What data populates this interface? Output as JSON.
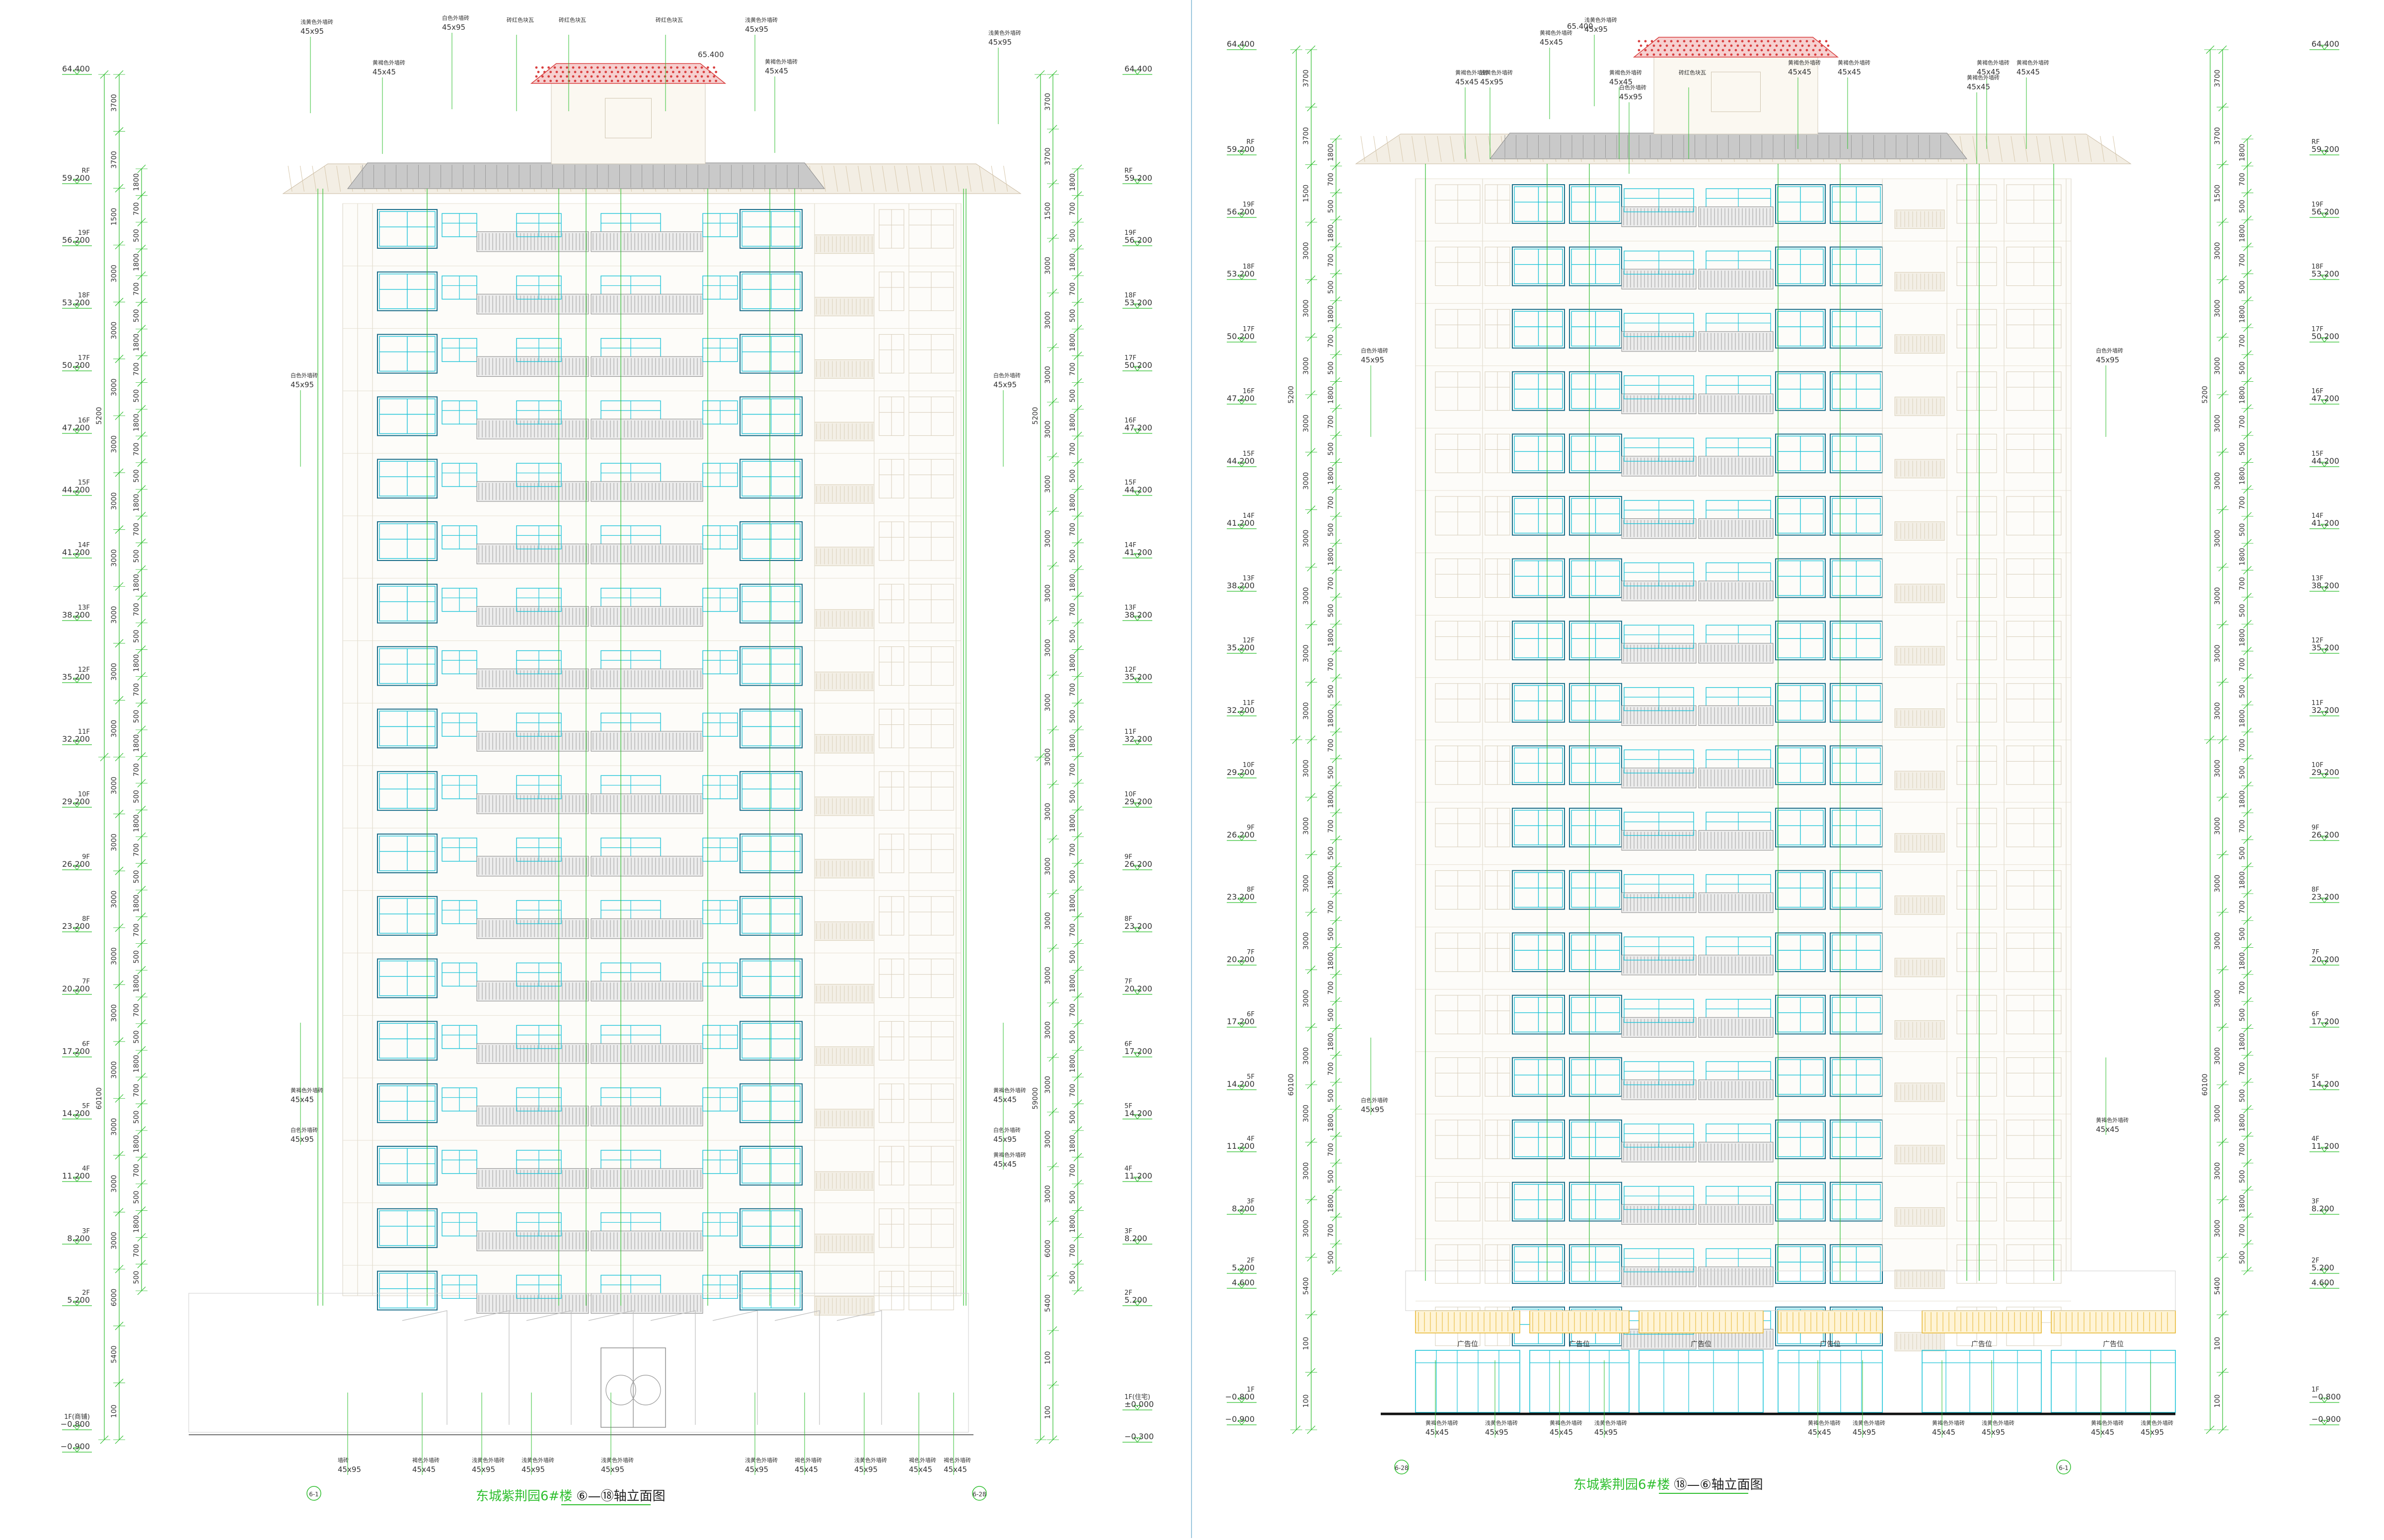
{
  "sheets": [
    {
      "id": "left",
      "title": "东城紫荆园6#楼",
      "axis_title": "⑥—⑱轴立面图",
      "axis_markers": [
        "6-1",
        "6-28"
      ],
      "levels": [
        {
          "floor": "",
          "elev": "64.400"
        },
        {
          "floor": "RF",
          "elev": "59.200"
        },
        {
          "floor": "19F",
          "elev": "56.200"
        },
        {
          "floor": "18F",
          "elev": "53.200"
        },
        {
          "floor": "17F",
          "elev": "50.200"
        },
        {
          "floor": "16F",
          "elev": "47.200"
        },
        {
          "floor": "15F",
          "elev": "44.200"
        },
        {
          "floor": "14F",
          "elev": "41.200"
        },
        {
          "floor": "13F",
          "elev": "38.200"
        },
        {
          "floor": "12F",
          "elev": "35.200"
        },
        {
          "floor": "11F",
          "elev": "32.200"
        },
        {
          "floor": "10F",
          "elev": "29.200"
        },
        {
          "floor": "9F",
          "elev": "26.200"
        },
        {
          "floor": "8F",
          "elev": "23.200"
        },
        {
          "floor": "7F",
          "elev": "20.200"
        },
        {
          "floor": "6F",
          "elev": "17.200"
        },
        {
          "floor": "5F",
          "elev": "14.200"
        },
        {
          "floor": "4F",
          "elev": "11.200"
        },
        {
          "floor": "3F",
          "elev": "8.200"
        },
        {
          "floor": "2F",
          "elev": "5.200"
        },
        {
          "floor": "1F(商铺)",
          "elev": "−0.800"
        },
        {
          "floor": "",
          "elev": "−0.900"
        }
      ],
      "right_extra_levels": [
        {
          "floor": "1F(住宅)",
          "elev": "±0.000"
        },
        {
          "floor": "",
          "elev": "−0.300"
        }
      ],
      "ridge_elev": "65.400",
      "dims_outer": [
        "3700",
        "3700",
        "1500",
        "3000",
        "3000",
        "3000",
        "3000",
        "3000",
        "3000",
        "3000",
        "3000",
        "3000",
        "3000",
        "3000",
        "3000",
        "3000",
        "3000",
        "3000",
        "3000",
        "3000",
        "3000",
        "6000",
        "5400",
        "100",
        "100"
      ],
      "dims_inner": [
        "1800",
        "700",
        "500"
      ],
      "total_dims": [
        "5200",
        "60100",
        "59000"
      ],
      "callouts": [
        {
          "text": "浅黄色外墙砖",
          "size": "45x95"
        },
        {
          "text": "黄褐色外墙砖",
          "size": "45x45"
        },
        {
          "text": "白色外墙砖",
          "size": "45x95"
        },
        {
          "text": "砖红色块瓦",
          "size": ""
        },
        {
          "text": "墙砖",
          "size": "45x95"
        },
        {
          "text": "褐色外墙砖",
          "size": "45x45"
        }
      ]
    },
    {
      "id": "right",
      "title": "东城紫荆园6#楼",
      "axis_title": "⑱—⑥轴立面图",
      "axis_markers": [
        "6-28",
        "6-1"
      ],
      "levels": [
        {
          "floor": "",
          "elev": "64.400"
        },
        {
          "floor": "RF",
          "elev": "59.200"
        },
        {
          "floor": "19F",
          "elev": "56.200"
        },
        {
          "floor": "18F",
          "elev": "53.200"
        },
        {
          "floor": "17F",
          "elev": "50.200"
        },
        {
          "floor": "16F",
          "elev": "47.200"
        },
        {
          "floor": "15F",
          "elev": "44.200"
        },
        {
          "floor": "14F",
          "elev": "41.200"
        },
        {
          "floor": "13F",
          "elev": "38.200"
        },
        {
          "floor": "12F",
          "elev": "35.200"
        },
        {
          "floor": "11F",
          "elev": "32.200"
        },
        {
          "floor": "10F",
          "elev": "29.200"
        },
        {
          "floor": "9F",
          "elev": "26.200"
        },
        {
          "floor": "8F",
          "elev": "23.200"
        },
        {
          "floor": "7F",
          "elev": "20.200"
        },
        {
          "floor": "6F",
          "elev": "17.200"
        },
        {
          "floor": "5F",
          "elev": "14.200"
        },
        {
          "floor": "4F",
          "elev": "11.200"
        },
        {
          "floor": "3F",
          "elev": "8.200"
        },
        {
          "floor": "2F",
          "elev": "5.200"
        },
        {
          "floor": "",
          "elev": "4.600"
        },
        {
          "floor": "1F",
          "elev": "−0.800"
        },
        {
          "floor": "",
          "elev": "−0.900"
        }
      ],
      "ridge_elev": "65.400",
      "dims_outer": [
        "3700",
        "3700",
        "1500",
        "3000",
        "3000",
        "3000",
        "3000",
        "3000",
        "3000",
        "3000",
        "3000",
        "3000",
        "3000",
        "3000",
        "3000",
        "3000",
        "3000",
        "3000",
        "3000",
        "3000",
        "3000",
        "5400",
        "100",
        "100"
      ],
      "dims_inner": [
        "1800",
        "700",
        "500"
      ],
      "total_dims": [
        "5200",
        "60100"
      ],
      "shop_label": "广告位",
      "callouts": [
        {
          "text": "浅黄色外墙砖",
          "size": "45x95"
        },
        {
          "text": "黄褐色外墙砖",
          "size": "45x45"
        },
        {
          "text": "白色外墙砖",
          "size": "45x95"
        },
        {
          "text": "砖红色块瓦",
          "size": ""
        },
        {
          "text": "褐色外墙砖",
          "size": "45x45"
        }
      ]
    }
  ],
  "colors": {
    "dimension": "#2fbf2f",
    "window": "#1fc4d8",
    "window_dark": "#1a6e8a",
    "wall": "#cfcfcf",
    "roof_tile": "#d94040",
    "roof_hatch": "#b8b8b8",
    "rail": "#8a8a8a",
    "title": "#2fbf2f"
  }
}
